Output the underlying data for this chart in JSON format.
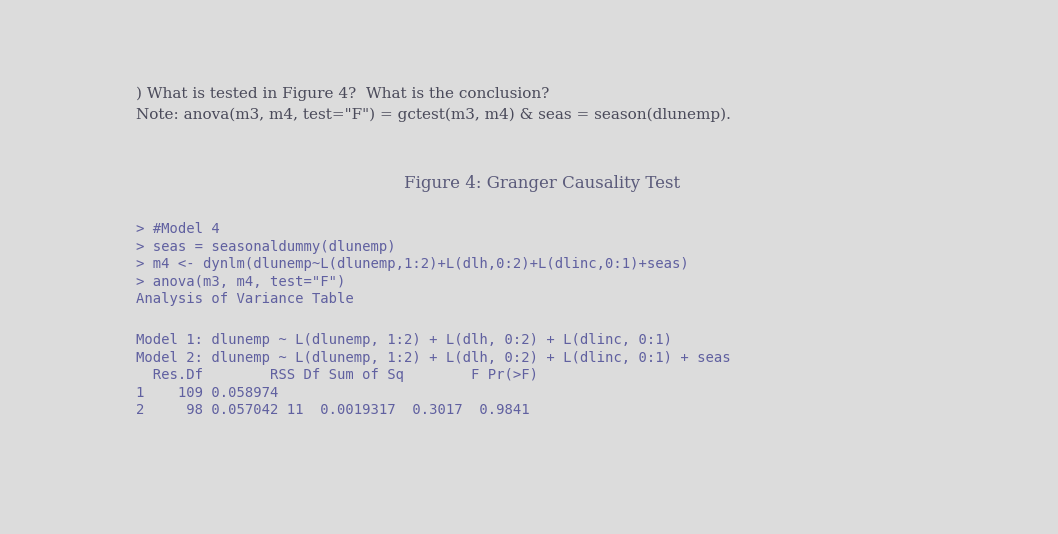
{
  "background_color": "#dcdcdc",
  "title": "Figure 4: Granger Causality Test",
  "title_color": "#5a5a7a",
  "title_fontsize": 12,
  "header_line1": ") What is tested in Figure 4?  What is the conclusion?",
  "header_line2": "Note: anova(m3, m4, test=\"F\") = gctest(m3, m4) & seas = season(dlunemp).",
  "header_color": "#4a4a5a",
  "header_fontsize": 11,
  "code_lines": [
    "> #Model 4",
    "> seas = seasonaldummy(dlunemp)",
    "> m4 <- dynlm(dlunemp~L(dlunemp,1:2)+L(dlh,0:2)+L(dlinc,0:1)+seas)",
    "> anova(m3, m4, test=\"F\")",
    "Analysis of Variance Table"
  ],
  "code_color": "#6060a0",
  "code_fontsize": 10,
  "table_lines": [
    "Model 1: dlunemp ~ L(dlunemp, 1:2) + L(dlh, 0:2) + L(dlinc, 0:1)",
    "Model 2: dlunemp ~ L(dlunemp, 1:2) + L(dlh, 0:2) + L(dlinc, 0:1) + seas",
    "  Res.Df        RSS Df Sum of Sq        F Pr(>F)",
    "1    109 0.058974",
    "2     98 0.057042 11  0.0019317  0.3017  0.9841"
  ],
  "table_color": "#6060a0",
  "table_fontsize": 10
}
